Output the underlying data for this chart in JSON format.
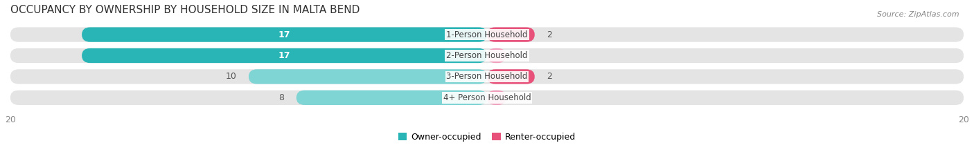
{
  "title": "OCCUPANCY BY OWNERSHIP BY HOUSEHOLD SIZE IN MALTA BEND",
  "source": "Source: ZipAtlas.com",
  "categories": [
    "1-Person Household",
    "2-Person Household",
    "3-Person Household",
    "4+ Person Household"
  ],
  "owner_values": [
    17,
    17,
    10,
    8
  ],
  "renter_values": [
    2,
    0,
    2,
    0
  ],
  "owner_color_dark": "#29b5b5",
  "owner_color_light": "#7fd4d4",
  "renter_color_dark": "#e8527a",
  "renter_color_light": "#f0a0bc",
  "max_val": 20,
  "title_fontsize": 11,
  "bar_label_fontsize": 9,
  "cat_label_fontsize": 8.5,
  "tick_fontsize": 9,
  "source_fontsize": 8,
  "legend_fontsize": 9,
  "bar_bg_color": "#e4e4e4",
  "legend_owner": "Owner-occupied",
  "legend_renter": "Renter-occupied"
}
